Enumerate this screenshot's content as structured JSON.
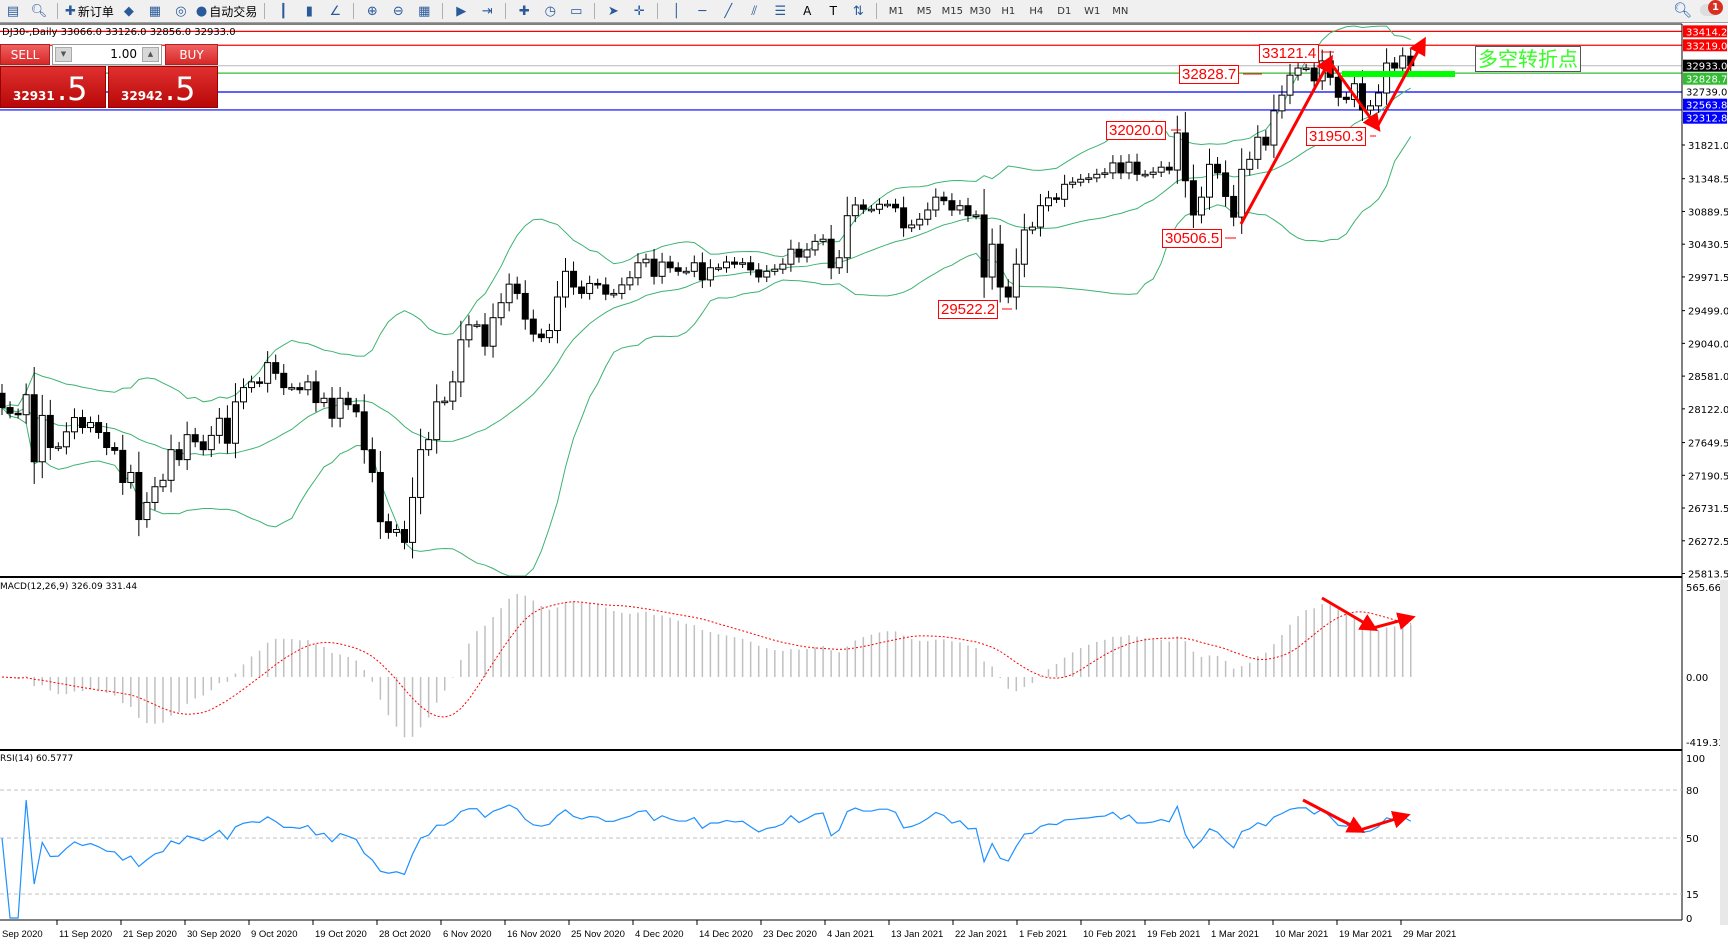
{
  "toolbar": {
    "items": [
      {
        "icon": "new-chart-icon"
      },
      {
        "icon": "zoom-chart-icon"
      },
      {
        "icon": "new-order-icon",
        "label": "新订单"
      },
      {
        "icon": "history-icon"
      },
      {
        "icon": "terminal-icon"
      },
      {
        "icon": "signal-icon"
      },
      {
        "icon": "auto-trading-icon",
        "label": "自动交易"
      },
      {
        "icon": "bar-chart-icon"
      },
      {
        "icon": "candlestick-icon"
      },
      {
        "icon": "line-chart-icon"
      },
      {
        "icon": "zoom-in-icon"
      },
      {
        "icon": "zoom-out-icon"
      },
      {
        "icon": "tile-windows-icon"
      },
      {
        "icon": "autoscroll-icon"
      },
      {
        "icon": "chart-shift-icon"
      },
      {
        "icon": "indicators-icon"
      },
      {
        "icon": "periods-icon"
      },
      {
        "icon": "templates-icon"
      },
      {
        "icon": "cursor-icon"
      },
      {
        "icon": "crosshair-icon"
      },
      {
        "icon": "vertical-line-icon"
      },
      {
        "icon": "horizontal-line-icon"
      },
      {
        "icon": "trendline-icon"
      },
      {
        "icon": "equidistant-channel-icon"
      },
      {
        "icon": "fibonacci-icon"
      },
      {
        "icon": "text-icon",
        "label": "A"
      },
      {
        "icon": "text-label-icon",
        "label": "T"
      },
      {
        "icon": "arrows-icon"
      }
    ],
    "timeframes": [
      "M1",
      "M5",
      "M15",
      "M30",
      "H1",
      "H4",
      "D1",
      "W1",
      "MN"
    ],
    "notification_count": "1"
  },
  "chart": {
    "title": "DJ30-,Daily  33066.0 33126.0 32856.0 32933.0",
    "symbol": "DJ30-",
    "period": "Daily",
    "ohlc": {
      "open": 33066.0,
      "high": 33126.0,
      "low": 32856.0,
      "close": 32933.0
    }
  },
  "one_click": {
    "sell_label": "SELL",
    "buy_label": "BUY",
    "lot": "1.00",
    "sell_price_main": "32931",
    "sell_price_frac": ".5",
    "buy_price_main": "32942",
    "buy_price_frac": ".5"
  },
  "annotations": {
    "labels": [
      "33121.4",
      "32828.7",
      "32020.0",
      "31950.3",
      "30506.5",
      "29522.2"
    ],
    "note": "多空转折点",
    "arrow_color": "#ff0000"
  },
  "indicators": {
    "macd_label": "MACD(12,26,9) 326.09 331.44",
    "rsi_label": "RSI(14) 60.5777"
  },
  "chart_data": {
    "type": "candlestick",
    "close": [
      28140,
      28060,
      28040,
      28320,
      27380,
      28030,
      27580,
      27590,
      27800,
      28000,
      27860,
      27930,
      27790,
      27580,
      27540,
      27090,
      27230,
      26570,
      26810,
      27030,
      27120,
      27550,
      27410,
      27760,
      27660,
      27550,
      27750,
      27990,
      27640,
      28220,
      28420,
      28500,
      28480,
      28770,
      28620,
      28420,
      28420,
      28390,
      28500,
      28210,
      28270,
      27990,
      28270,
      28180,
      28080,
      27550,
      27230,
      26540,
      26390,
      26430,
      26250,
      26880,
      27550,
      27690,
      28220,
      28230,
      28500,
      29090,
      29300,
      29300,
      29000,
      29400,
      29610,
      29870,
      29740,
      29380,
      29170,
      29120,
      29220,
      29690,
      30050,
      29830,
      29740,
      29880,
      29860,
      29730,
      29740,
      29860,
      29960,
      30170,
      30220,
      29980,
      30180,
      30100,
      30050,
      30050,
      30170,
      29930,
      30100,
      30100,
      30180,
      30150,
      30170,
      30070,
      29970,
      30050,
      30080,
      30150,
      30360,
      30250,
      30350,
      30470,
      30500,
      30100,
      30240,
      30830,
      30980,
      30920,
      30920,
      30990,
      30990,
      30940,
      30660,
      30700,
      30780,
      30910,
      31090,
      31040,
      30910,
      30970,
      30830,
      30840,
      29970,
      30430,
      29830,
      29690,
      30150,
      30630,
      30670,
      30970,
      31080,
      31060,
      31270,
      31300,
      31340,
      31360,
      31410,
      31430,
      31570,
      31430,
      31580,
      31410,
      31410,
      31440,
      31510,
      31470,
      31990,
      31320,
      30840,
      31090,
      31550,
      31430,
      31100,
      30810,
      31480,
      31620,
      31930,
      31820,
      32300,
      32520,
      32800,
      32900,
      32900,
      32720,
      33000,
      32770,
      32490,
      32460,
      32680,
      32310,
      32370,
      32550,
      32970,
      32900,
      33070,
      32933
    ],
    "last_open": 33066.0,
    "bollinger": {
      "period": 20,
      "deviation": 2,
      "color": "#3cb371"
    },
    "price_axis_ticks": [
      "31821.0",
      "31348.5",
      "30889.5",
      "30430.5",
      "29971.5",
      "29499.0",
      "29040.0",
      "28581.0",
      "28122.0",
      "27649.5",
      "27190.5",
      "26731.5",
      "26272.5",
      "25813.5"
    ],
    "price_range": [
      25813.5,
      33414.2
    ],
    "price_tags": [
      {
        "value": "33414.2",
        "color": "#ff0000"
      },
      {
        "value": "33219.0",
        "color": "#ff0000"
      },
      {
        "value": "32933.0",
        "color": "#000000"
      },
      {
        "value": "32828.7",
        "color": "#33bb33"
      },
      {
        "value": "32739.0",
        "color": ""
      },
      {
        "value": "32563.8",
        "color": "#0000ff"
      },
      {
        "value": "32312.8",
        "color": "#0000ff"
      }
    ],
    "horizontal_lines": [
      {
        "price": 33414.2,
        "color": "#ff0000"
      },
      {
        "price": 33219.0,
        "color": "#ff0000"
      },
      {
        "price": 32933.0,
        "color": "#c0c0c0"
      },
      {
        "price": 32828.7,
        "color": "#33bb33"
      },
      {
        "price": 32563.8,
        "color": "#0000ff"
      },
      {
        "price": 32312.8,
        "color": "#0000ff"
      }
    ],
    "macd": {
      "fast": 12,
      "slow": 26,
      "signal": 9,
      "axis_ticks": [
        "565.66",
        "0.00",
        "-419.33"
      ],
      "range": [
        -419.33,
        565.66
      ],
      "hist_color": "#c0c0c0",
      "signal_color": "#ff0000"
    },
    "rsi": {
      "period": 14,
      "axis_ticks": [
        "100",
        "80",
        "50",
        "15",
        "0"
      ],
      "levels": [
        80,
        50,
        15
      ],
      "color": "#1e90ff"
    },
    "date_labels": [
      "Sep 2020",
      "11 Sep 2020",
      "21 Sep 2020",
      "30 Sep 2020",
      "9 Oct 2020",
      "19 Oct 2020",
      "28 Oct 2020",
      "6 Nov 2020",
      "16 Nov 2020",
      "25 Nov 2020",
      "4 Dec 2020",
      "14 Dec 2020",
      "23 Dec 2020",
      "4 Jan 2021",
      "13 Jan 2021",
      "22 Jan 2021",
      "1 Feb 2021",
      "10 Feb 2021",
      "19 Feb 2021",
      "1 Mar 2021",
      "10 Mar 2021",
      "19 Mar 2021",
      "29 Mar 2021"
    ]
  }
}
